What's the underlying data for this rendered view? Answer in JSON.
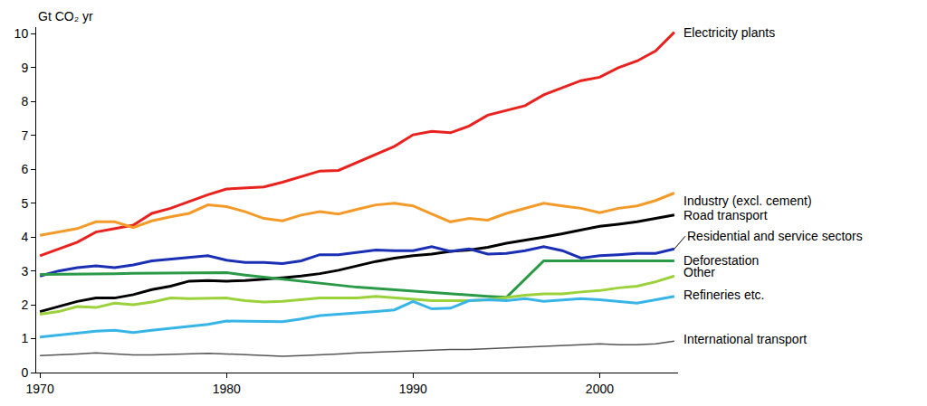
{
  "chart_data": {
    "type": "line",
    "y_label": "Gt CO₂ yr",
    "x": [
      1970,
      1971,
      1972,
      1973,
      1974,
      1975,
      1976,
      1977,
      1978,
      1979,
      1980,
      1981,
      1982,
      1983,
      1984,
      1985,
      1986,
      1987,
      1988,
      1989,
      1990,
      1991,
      1992,
      1993,
      1994,
      1995,
      1996,
      1997,
      1998,
      1999,
      2000,
      2001,
      2002,
      2003,
      2004
    ],
    "xlim": [
      1969.8,
      2004.2
    ],
    "xticks": [
      1970,
      1980,
      1990,
      2000
    ],
    "ylim": [
      0,
      10.2
    ],
    "yticks": [
      0,
      1,
      2,
      3,
      4,
      5,
      6,
      7,
      8,
      9,
      10
    ],
    "grid": false,
    "series": [
      {
        "name": "Electricity plants",
        "color": "#e8231f",
        "values": [
          3.45,
          3.65,
          3.85,
          4.15,
          4.25,
          4.35,
          4.7,
          4.85,
          5.05,
          5.25,
          5.42,
          5.45,
          5.48,
          5.62,
          5.78,
          5.95,
          5.97,
          6.2,
          6.45,
          6.68,
          7.02,
          7.12,
          7.08,
          7.28,
          7.6,
          7.75,
          7.88,
          8.2,
          8.42,
          8.62,
          8.72,
          9.0,
          9.2,
          9.5,
          10.05
        ]
      },
      {
        "name": "Industry (excl. cement)",
        "color": "#f39a28",
        "values": [
          4.05,
          4.15,
          4.25,
          4.45,
          4.45,
          4.28,
          4.48,
          4.6,
          4.7,
          4.95,
          4.9,
          4.75,
          4.55,
          4.48,
          4.65,
          4.75,
          4.68,
          4.82,
          4.95,
          5.0,
          4.92,
          4.68,
          4.45,
          4.55,
          4.5,
          4.7,
          4.85,
          5.0,
          4.92,
          4.85,
          4.72,
          4.85,
          4.92,
          5.08,
          5.3
        ]
      },
      {
        "name": "Road transport",
        "color": "#000000",
        "values": [
          1.8,
          1.95,
          2.1,
          2.2,
          2.2,
          2.3,
          2.45,
          2.55,
          2.7,
          2.72,
          2.7,
          2.72,
          2.75,
          2.8,
          2.85,
          2.92,
          3.02,
          3.15,
          3.28,
          3.38,
          3.45,
          3.5,
          3.58,
          3.62,
          3.7,
          3.82,
          3.9,
          4.0,
          4.1,
          4.2,
          4.32,
          4.38,
          4.45,
          4.55,
          4.65
        ]
      },
      {
        "name": "Residential and service sectors",
        "color": "#1a2fb3",
        "values": [
          2.85,
          3.0,
          3.1,
          3.15,
          3.1,
          3.18,
          3.3,
          3.35,
          3.42,
          3.45,
          3.32,
          3.25,
          3.25,
          3.22,
          3.3,
          3.48,
          3.48,
          3.55,
          3.62,
          3.6,
          3.6,
          3.72,
          3.58,
          3.65,
          3.5,
          3.52,
          3.6,
          3.72,
          3.6,
          3.38,
          3.45,
          3.48,
          3.52,
          3.52,
          3.65
        ]
      },
      {
        "name": "Deforestation",
        "color": "#2a9a48",
        "values": [
          2.9,
          2.9,
          2.9,
          2.92,
          2.92,
          2.93,
          2.93,
          2.94,
          2.94,
          2.95,
          2.95,
          2.88,
          2.82,
          2.75,
          2.7,
          2.62,
          2.58,
          2.52,
          2.48,
          2.44,
          2.4,
          2.36,
          2.32,
          2.28,
          2.25,
          2.22,
          2.76,
          3.3,
          3.3,
          3.3,
          3.3,
          3.3,
          3.32,
          3.3,
          3.3
        ]
      },
      {
        "name": "Other",
        "color": "#9bd13a",
        "values": [
          1.72,
          1.8,
          1.95,
          1.92,
          2.05,
          2.0,
          2.08,
          2.2,
          2.18,
          2.2,
          2.2,
          2.12,
          2.08,
          2.1,
          2.15,
          2.2,
          2.2,
          2.2,
          2.25,
          2.2,
          2.15,
          2.12,
          2.12,
          2.12,
          2.15,
          2.22,
          2.28,
          2.32,
          2.32,
          2.38,
          2.42,
          2.5,
          2.55,
          2.68,
          2.85
        ]
      },
      {
        "name": "Refineries etc.",
        "color": "#38b5e6",
        "values": [
          1.05,
          1.1,
          1.15,
          1.22,
          1.25,
          1.18,
          1.25,
          1.3,
          1.35,
          1.42,
          1.52,
          1.52,
          1.5,
          1.5,
          1.58,
          1.68,
          1.72,
          1.75,
          1.8,
          1.85,
          2.1,
          1.88,
          1.9,
          2.12,
          2.15,
          2.12,
          2.18,
          2.1,
          2.15,
          2.18,
          2.15,
          2.1,
          2.05,
          2.15,
          2.25
        ]
      },
      {
        "name": "International transport",
        "color": "#555555",
        "values": [
          0.5,
          0.52,
          0.55,
          0.58,
          0.55,
          0.52,
          0.52,
          0.53,
          0.55,
          0.57,
          0.55,
          0.53,
          0.5,
          0.48,
          0.5,
          0.52,
          0.55,
          0.58,
          0.6,
          0.62,
          0.65,
          0.67,
          0.68,
          0.68,
          0.7,
          0.72,
          0.75,
          0.78,
          0.8,
          0.82,
          0.85,
          0.82,
          0.82,
          0.85,
          0.93
        ]
      }
    ]
  }
}
